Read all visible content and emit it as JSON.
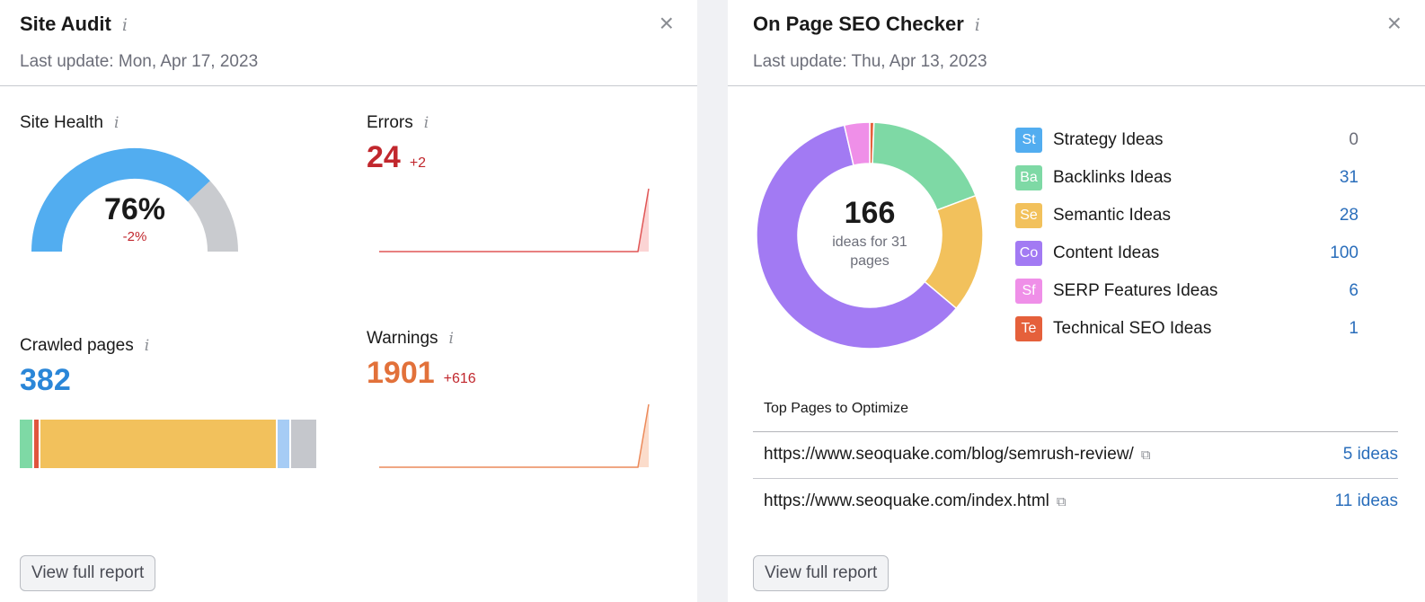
{
  "site_audit": {
    "title": "Site Audit",
    "info_icon": "i",
    "last_update": "Last update: Mon, Apr 17, 2023",
    "close_icon": "×",
    "site_health": {
      "label": "Site Health",
      "value": "76%",
      "delta": "-2%",
      "fraction": 0.76
    },
    "errors": {
      "label": "Errors",
      "value": "24",
      "delta": "+2",
      "color": "#c1272d"
    },
    "crawled": {
      "label": "Crawled pages",
      "value": "382",
      "color": "#2a86d8",
      "segments": [
        {
          "color": "#7ed9a5",
          "share": 0.041
        },
        {
          "color": "#e0553e",
          "share": 0.024
        },
        {
          "color": "#f2c15c",
          "share": 0.8
        },
        {
          "color": "#a6ccf5",
          "share": 0.045
        },
        {
          "color": "#c5c7cc",
          "share": 0.09
        }
      ]
    },
    "warnings": {
      "label": "Warnings",
      "value": "1901",
      "delta": "+616",
      "color": "#e2713a"
    },
    "view_button": "View full report"
  },
  "on_page_seo": {
    "title": "On Page SEO Checker",
    "info_icon": "i",
    "last_update": "Last update: Thu, Apr 13, 2023",
    "close_icon": "×",
    "donut": {
      "total": "166",
      "caption_line1": "ideas for 31",
      "caption_line2": "pages"
    },
    "ideas": [
      {
        "abbr": "St",
        "label": "Strategy Ideas",
        "value": "0",
        "count": 0,
        "color": "#52adf0"
      },
      {
        "abbr": "Ba",
        "label": "Backlinks Ideas",
        "value": "31",
        "count": 31,
        "color": "#7ed9a5"
      },
      {
        "abbr": "Se",
        "label": "Semantic Ideas",
        "value": "28",
        "count": 28,
        "color": "#f2c15c"
      },
      {
        "abbr": "Co",
        "label": "Content Ideas",
        "value": "100",
        "count": 100,
        "color": "#a27af3"
      },
      {
        "abbr": "Sf",
        "label": "SERP Features Ideas",
        "value": "6",
        "count": 6,
        "color": "#ef8fe8"
      },
      {
        "abbr": "Te",
        "label": "Technical SEO Ideas",
        "value": "1",
        "count": 1,
        "color": "#e5603b"
      }
    ],
    "top_pages_title": "Top Pages to Optimize",
    "top_pages": [
      {
        "url": "https://www.seoquake.com/blog/semrush-review/",
        "ideas": "5 ideas"
      },
      {
        "url": "https://www.seoquake.com/index.html",
        "ideas": "11 ideas"
      }
    ],
    "external_link_icon": "⧉",
    "view_button": "View full report"
  }
}
